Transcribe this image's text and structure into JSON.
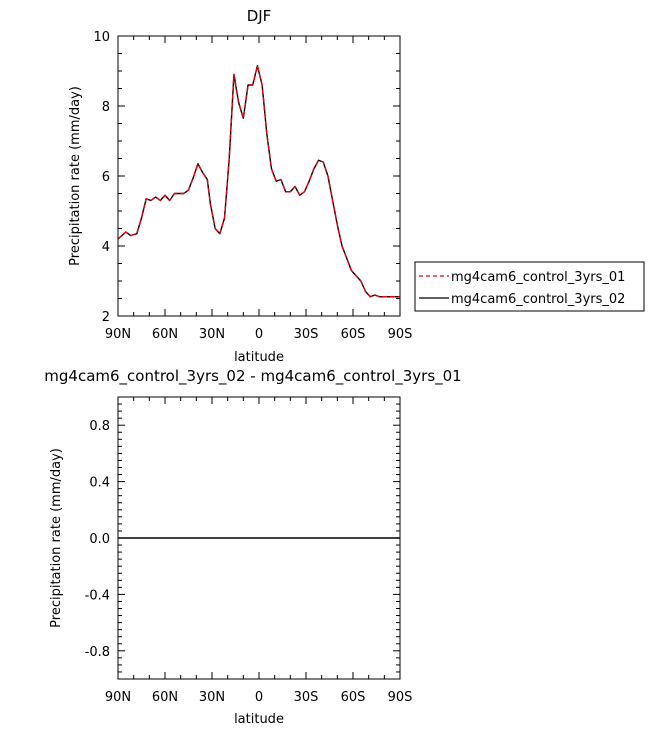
{
  "chart_data": [
    {
      "type": "line",
      "title": "DJF",
      "xlabel": "latitude",
      "ylabel": "Precipitation rate (mm/day)",
      "xlim": [
        90,
        -90
      ],
      "ylim": [
        2,
        10
      ],
      "xticks": [
        {
          "v": 90,
          "label": "90N"
        },
        {
          "v": 60,
          "label": "60N"
        },
        {
          "v": 30,
          "label": "30N"
        },
        {
          "v": 0,
          "label": "0"
        },
        {
          "v": -30,
          "label": "30S"
        },
        {
          "v": -60,
          "label": "60S"
        },
        {
          "v": -90,
          "label": "90S"
        }
      ],
      "yticks": [
        {
          "v": 2,
          "label": "2"
        },
        {
          "v": 4,
          "label": "4"
        },
        {
          "v": 6,
          "label": "6"
        },
        {
          "v": 8,
          "label": "8"
        },
        {
          "v": 10,
          "label": "10"
        }
      ],
      "legend_position": "right",
      "series": [
        {
          "name": "mg4cam6_control_3yrs_01",
          "color": "#e8000b",
          "dash": "dashed",
          "x": [
            90,
            85,
            82,
            78,
            75,
            72,
            69,
            66,
            63,
            60,
            57,
            54,
            51,
            48,
            45,
            42,
            39,
            36,
            33,
            31,
            28,
            25,
            22,
            19,
            16,
            13,
            10,
            7,
            4,
            1,
            -2,
            -5,
            -8,
            -11,
            -14,
            -17,
            -20,
            -23,
            -26,
            -29,
            -32,
            -35,
            -38,
            -41,
            -44,
            -47,
            -50,
            -53,
            -56,
            -59,
            -62,
            -65,
            -68,
            -71,
            -74,
            -77,
            -80,
            -83,
            -86,
            -88,
            -90
          ],
          "y": [
            4.2,
            4.4,
            4.3,
            4.35,
            4.8,
            5.35,
            5.3,
            5.4,
            5.3,
            5.45,
            5.3,
            5.5,
            5.5,
            5.5,
            5.6,
            5.95,
            6.35,
            6.1,
            5.9,
            5.2,
            4.5,
            4.35,
            4.8,
            6.5,
            8.9,
            8.1,
            7.65,
            8.6,
            8.6,
            9.15,
            8.6,
            7.2,
            6.2,
            5.85,
            5.9,
            5.55,
            5.55,
            5.7,
            5.45,
            5.55,
            5.85,
            6.2,
            6.45,
            6.4,
            6.0,
            5.3,
            4.6,
            4.0,
            3.65,
            3.3,
            3.15,
            3.0,
            2.7,
            2.55,
            2.6,
            2.55,
            2.55,
            2.55,
            2.55,
            2.55,
            2.55
          ]
        },
        {
          "name": "mg4cam6_control_3yrs_02",
          "color": "#000000",
          "dash": "solid",
          "x": [
            90,
            85,
            82,
            78,
            75,
            72,
            69,
            66,
            63,
            60,
            57,
            54,
            51,
            48,
            45,
            42,
            39,
            36,
            33,
            31,
            28,
            25,
            22,
            19,
            16,
            13,
            10,
            7,
            4,
            1,
            -2,
            -5,
            -8,
            -11,
            -14,
            -17,
            -20,
            -23,
            -26,
            -29,
            -32,
            -35,
            -38,
            -41,
            -44,
            -47,
            -50,
            -53,
            -56,
            -59,
            -62,
            -65,
            -68,
            -71,
            -74,
            -77,
            -80,
            -83,
            -86,
            -88,
            -90
          ],
          "y": [
            4.2,
            4.4,
            4.3,
            4.35,
            4.8,
            5.35,
            5.3,
            5.4,
            5.3,
            5.45,
            5.3,
            5.5,
            5.5,
            5.5,
            5.6,
            5.95,
            6.35,
            6.1,
            5.9,
            5.2,
            4.5,
            4.35,
            4.8,
            6.5,
            8.9,
            8.1,
            7.65,
            8.6,
            8.6,
            9.15,
            8.6,
            7.2,
            6.2,
            5.85,
            5.9,
            5.55,
            5.55,
            5.7,
            5.45,
            5.55,
            5.85,
            6.2,
            6.45,
            6.4,
            6.0,
            5.3,
            4.6,
            4.0,
            3.65,
            3.3,
            3.15,
            3.0,
            2.7,
            2.55,
            2.6,
            2.55,
            2.55,
            2.55,
            2.55,
            2.55,
            2.55
          ]
        }
      ]
    },
    {
      "type": "line",
      "title": "mg4cam6_control_3yrs_02 - mg4cam6_control_3yrs_01",
      "xlabel": "latitude",
      "ylabel": "Precipitation rate (mm/day)",
      "xlim": [
        90,
        -90
      ],
      "ylim": [
        -1,
        1
      ],
      "xticks": [
        {
          "v": 90,
          "label": "90N"
        },
        {
          "v": 60,
          "label": "60N"
        },
        {
          "v": 30,
          "label": "30N"
        },
        {
          "v": 0,
          "label": "0"
        },
        {
          "v": -30,
          "label": "30S"
        },
        {
          "v": -60,
          "label": "60S"
        },
        {
          "v": -90,
          "label": "90S"
        }
      ],
      "yticks": [
        {
          "v": 0.8,
          "label": "0.8"
        },
        {
          "v": 0.4,
          "label": "0.4"
        },
        {
          "v": 0.0,
          "label": "0.0"
        },
        {
          "v": -0.4,
          "label": "-0.4"
        },
        {
          "v": -0.8,
          "label": "-0.8"
        }
      ],
      "series": [
        {
          "color": "#000000",
          "dash": "solid",
          "x": [
            90,
            -90
          ],
          "y": [
            0,
            0
          ]
        }
      ]
    }
  ]
}
